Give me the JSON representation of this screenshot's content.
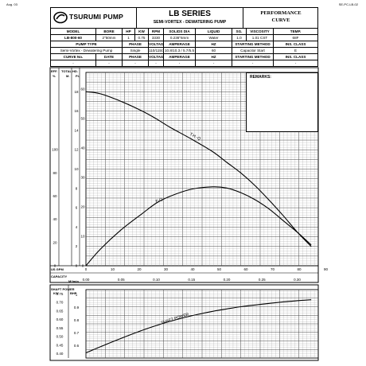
{
  "page": {
    "date_code": "Aug. 03",
    "doc_code": "SE-PC-LB-02"
  },
  "header": {
    "brand": "TSURUMI PUMP",
    "series": "LB SERIES",
    "subtitle": "SEMI-VORTEX - DEWATERING PUMP",
    "curve_title_line1": "PERFORMANCE",
    "curve_title_line2": "CURVE",
    "logo_icon": "tsurumi-swirl-icon"
  },
  "spec_table": {
    "row1_headers": [
      "MODEL",
      "BORE",
      "HP",
      "KW",
      "RPM",
      "SOLIDS DIA",
      "LIQUID",
      "SG.",
      "VISCOSITY",
      "TEMP."
    ],
    "row1_values": [
      "LB-800-60",
      "2\"50mm",
      "1",
      "0.75",
      "3330",
      "0.236\"6mm",
      "Water",
      "1.0",
      "1.01 CST",
      "68F"
    ],
    "row2_headers": [
      "PUMP TYPE",
      "PHASE",
      "VOLTAGE",
      "AMPERAGE",
      "HZ",
      "STARTING METHOD",
      "INS. CLASS"
    ],
    "row2_values": [
      "Semi-Vortex - Dewatering Pump",
      "Single",
      "110/115/220/230",
      "10.8/10.3 / 5.7/5.5",
      "60",
      "Capacitor Start",
      "E"
    ],
    "row3_headers": [
      "CURVE No.",
      "DATE",
      "PHASE",
      "VOLTAGE",
      "AMPERAGE",
      "HZ",
      "STARTING METHOD",
      "INS. CLASS"
    ],
    "row3_values": [
      "-",
      "-",
      "-",
      "-",
      "-",
      "-",
      "-",
      "-"
    ]
  },
  "remarks_label": "REMARKS:",
  "main_axes": {
    "eff_header": "EFF.",
    "pct_header": "%",
    "total_hd_header": "TOTAL HD.",
    "m_header": "M.",
    "ft_header": "Ft.",
    "us_gpm_label": "US GPM",
    "capacity_label": "CAPACITY",
    "m3min_label": "M³/min",
    "eff_ticks": [
      "100",
      "80",
      "60",
      "40",
      "20",
      "0"
    ],
    "m_ticks": [
      "18",
      "16",
      "14",
      "12",
      "10",
      "8",
      "6",
      "4",
      "2",
      "0"
    ],
    "ft_ticks": [
      "60",
      "50",
      "40",
      "30",
      "20",
      "10",
      "0"
    ],
    "gpm_ticks": [
      "0",
      "10",
      "20",
      "30",
      "40",
      "50",
      "60",
      "70",
      "80",
      "90"
    ],
    "m3_ticks": [
      "0.00",
      "0.05",
      "0.10",
      "0.15",
      "0.20",
      "0.25",
      "0.30"
    ]
  },
  "power_axes": {
    "shaft_power_header": "SHAFT POWER",
    "kw_header": "KW",
    "bhp_header": "BHP",
    "kw_ticks": [
      "0.75",
      "0.70",
      "0.65",
      "0.60",
      "0.55",
      "0.50",
      "0.45",
      "0.40"
    ],
    "bhp_ticks": [
      "1",
      "0.9",
      "0.8",
      "0.7",
      "0.6"
    ]
  },
  "chart_data": [
    {
      "type": "line",
      "xlabel": "CAPACITY",
      "x_unit": "M³/min",
      "xlim": [
        0,
        0.33
      ],
      "ylim_head_m": [
        0,
        20
      ],
      "ylim_eff_pct": [
        0,
        100
      ],
      "grid": true,
      "series": [
        {
          "name": "T.H.-Q",
          "axis": "head_m",
          "x": [
            0.0,
            0.02,
            0.05,
            0.08,
            0.1,
            0.12,
            0.15,
            0.18,
            0.2,
            0.22,
            0.24,
            0.26,
            0.28,
            0.3,
            0.32
          ],
          "y": [
            18.0,
            17.8,
            17.0,
            16.0,
            15.2,
            14.3,
            13.1,
            11.8,
            10.7,
            9.6,
            8.3,
            6.8,
            5.2,
            3.5,
            2.0
          ]
        },
        {
          "name": "E-Q",
          "axis": "eff_pct",
          "x": [
            0.0,
            0.02,
            0.05,
            0.08,
            0.1,
            0.12,
            0.15,
            0.18,
            0.2,
            0.22,
            0.24,
            0.26,
            0.28,
            0.3,
            0.32
          ],
          "y": [
            0,
            14,
            31,
            45,
            54,
            60,
            66,
            68,
            67,
            63,
            57,
            49,
            39,
            29,
            18
          ]
        }
      ]
    },
    {
      "type": "line",
      "xlabel": "CAPACITY",
      "x_unit": "M³/min",
      "xlim": [
        0,
        0.33
      ],
      "ylabel": "KW",
      "ylim": [
        0.375,
        0.775
      ],
      "grid": true,
      "series": [
        {
          "name": "SHAFT POWER",
          "x": [
            0.0,
            0.02,
            0.05,
            0.08,
            0.1,
            0.12,
            0.15,
            0.18,
            0.2,
            0.22,
            0.25,
            0.28,
            0.3,
            0.32
          ],
          "y": [
            0.405,
            0.44,
            0.49,
            0.537,
            0.565,
            0.59,
            0.622,
            0.648,
            0.662,
            0.675,
            0.69,
            0.703,
            0.71,
            0.716
          ]
        }
      ]
    }
  ]
}
